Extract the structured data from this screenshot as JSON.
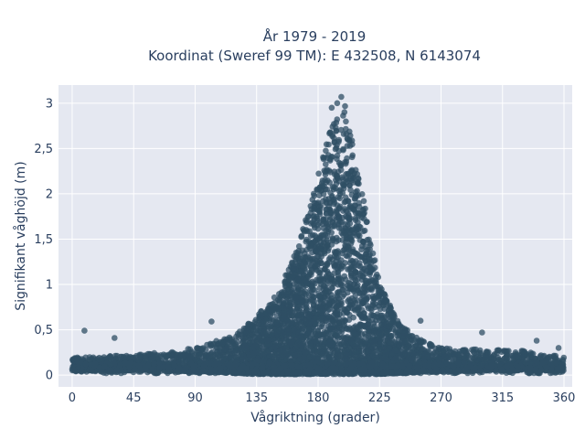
{
  "chart_data": {
    "type": "scatter",
    "title_lines": [
      "År 1979 - 2019",
      "Koordinat (Sweref 99 TM): E 432508, N 6143074"
    ],
    "xlabel": "Vågriktning (grader)",
    "ylabel": "Signifikant våghöjd (m)",
    "xlim": [
      -10,
      366
    ],
    "ylim": [
      -0.13,
      3.2
    ],
    "x_ticks": [
      0,
      45,
      90,
      135,
      180,
      225,
      270,
      315,
      360
    ],
    "x_tick_labels": [
      "0",
      "45",
      "90",
      "135",
      "180",
      "225",
      "270",
      "315",
      "360"
    ],
    "y_ticks": [
      0,
      0.5,
      1,
      1.5,
      2,
      2.5,
      3
    ],
    "y_tick_labels": [
      "0",
      "0,5",
      "1",
      "1,5",
      "2",
      "2,5",
      "3"
    ],
    "grid": true,
    "marker_color": "#2f4f64",
    "plot_bg": "#e5e8f1",
    "envelope": {
      "description_x": [
        0,
        45,
        90,
        120,
        135,
        150,
        165,
        180,
        190,
        200,
        210,
        225,
        240,
        255,
        270,
        300,
        330,
        360
      ],
      "upper_y": [
        0.2,
        0.22,
        0.3,
        0.45,
        0.65,
        0.9,
        1.4,
        2.2,
        2.8,
        3.0,
        2.2,
        1.0,
        0.55,
        0.4,
        0.3,
        0.28,
        0.27,
        0.2
      ],
      "lower_y": [
        0.05,
        0.05,
        0.04,
        0.02,
        0.01,
        0.01,
        0.01,
        0.01,
        0.01,
        0.01,
        0.01,
        0.01,
        0.02,
        0.03,
        0.04,
        0.05,
        0.05,
        0.05
      ]
    },
    "notable_points": [
      {
        "x": 9,
        "y": 0.49
      },
      {
        "x": 31,
        "y": 0.41
      },
      {
        "x": 102,
        "y": 0.59
      },
      {
        "x": 197,
        "y": 3.07
      },
      {
        "x": 194,
        "y": 3.0
      },
      {
        "x": 190,
        "y": 2.95
      },
      {
        "x": 255,
        "y": 0.6
      },
      {
        "x": 300,
        "y": 0.47
      },
      {
        "x": 340,
        "y": 0.38
      },
      {
        "x": 356,
        "y": 0.3
      }
    ]
  }
}
